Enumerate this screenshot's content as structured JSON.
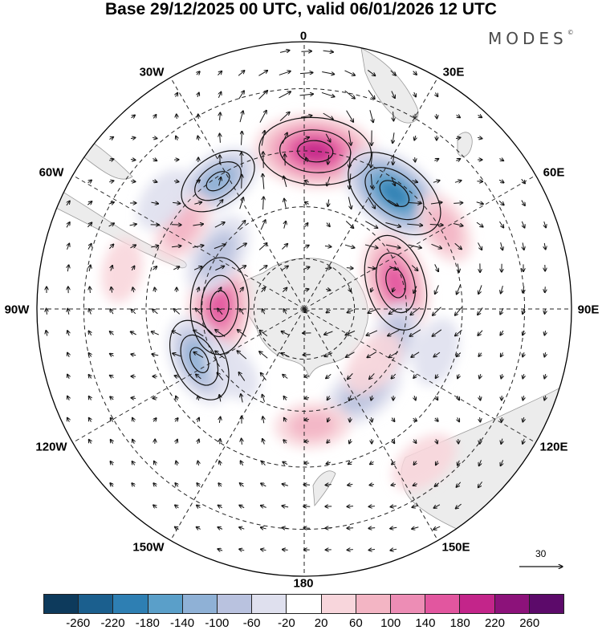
{
  "title": "Base 29/12/2025 00 UTC, valid 06/01/2026 12 UTC",
  "brand": "MODES",
  "brand_mark": "©",
  "projection": "south-polar-stereographic",
  "longitude_labels": {
    "lon_0": "0",
    "lon_30E": "30E",
    "lon_60E": "60E",
    "lon_90E": "90E",
    "lon_120E": "120E",
    "lon_150E": "150E",
    "lon_180": "180",
    "lon_150W": "150W",
    "lon_120W": "120W",
    "lon_90W": "90W",
    "lon_60W": "60W",
    "lon_30W": "30W"
  },
  "reference_vector": {
    "label": "30"
  },
  "colorbar": {
    "tick_labels": [
      "-260",
      "-220",
      "-180",
      "-140",
      "-100",
      "-60",
      "-20",
      "20",
      "60",
      "100",
      "140",
      "180",
      "220",
      "260"
    ],
    "colors": [
      "#0d3a5c",
      "#1b5f8e",
      "#2e7fb3",
      "#5a9fc9",
      "#8fb1d6",
      "#b9c2df",
      "#dfe0ee",
      "#ffffff",
      "#f8d6dc",
      "#f3b5c4",
      "#ed8db5",
      "#e2569f",
      "#c3258a",
      "#8c127a",
      "#5c0a6a"
    ]
  },
  "anomaly_centers": [
    {
      "lat": -45,
      "lon": 4,
      "value": 200
    },
    {
      "lat": -48,
      "lon": 38,
      "value": -180
    },
    {
      "lat": -62,
      "lon": 74,
      "value": 150
    },
    {
      "lat": -44,
      "lon": 60,
      "value": 60
    },
    {
      "lat": -65,
      "lon": -88,
      "value": 150
    },
    {
      "lat": -60,
      "lon": -58,
      "value": -90
    },
    {
      "lat": -46,
      "lon": -34,
      "value": -100
    },
    {
      "lat": -48,
      "lon": -56,
      "value": 60
    },
    {
      "lat": -56,
      "lon": -116,
      "value": -110
    },
    {
      "lat": -62,
      "lon": -130,
      "value": -40
    },
    {
      "lat": -62,
      "lon": 108,
      "value": -60
    },
    {
      "lat": -50,
      "lon": 108,
      "value": -40
    },
    {
      "lat": -60,
      "lon": 145,
      "value": -90
    },
    {
      "lat": -64,
      "lon": 128,
      "value": 50
    },
    {
      "lat": -56,
      "lon": 176,
      "value": 60
    },
    {
      "lat": -36,
      "lon": 142,
      "value": 50
    },
    {
      "lat": -38,
      "lon": -78,
      "value": 30
    },
    {
      "lat": -40,
      "lon": -52,
      "value": -40
    }
  ]
}
